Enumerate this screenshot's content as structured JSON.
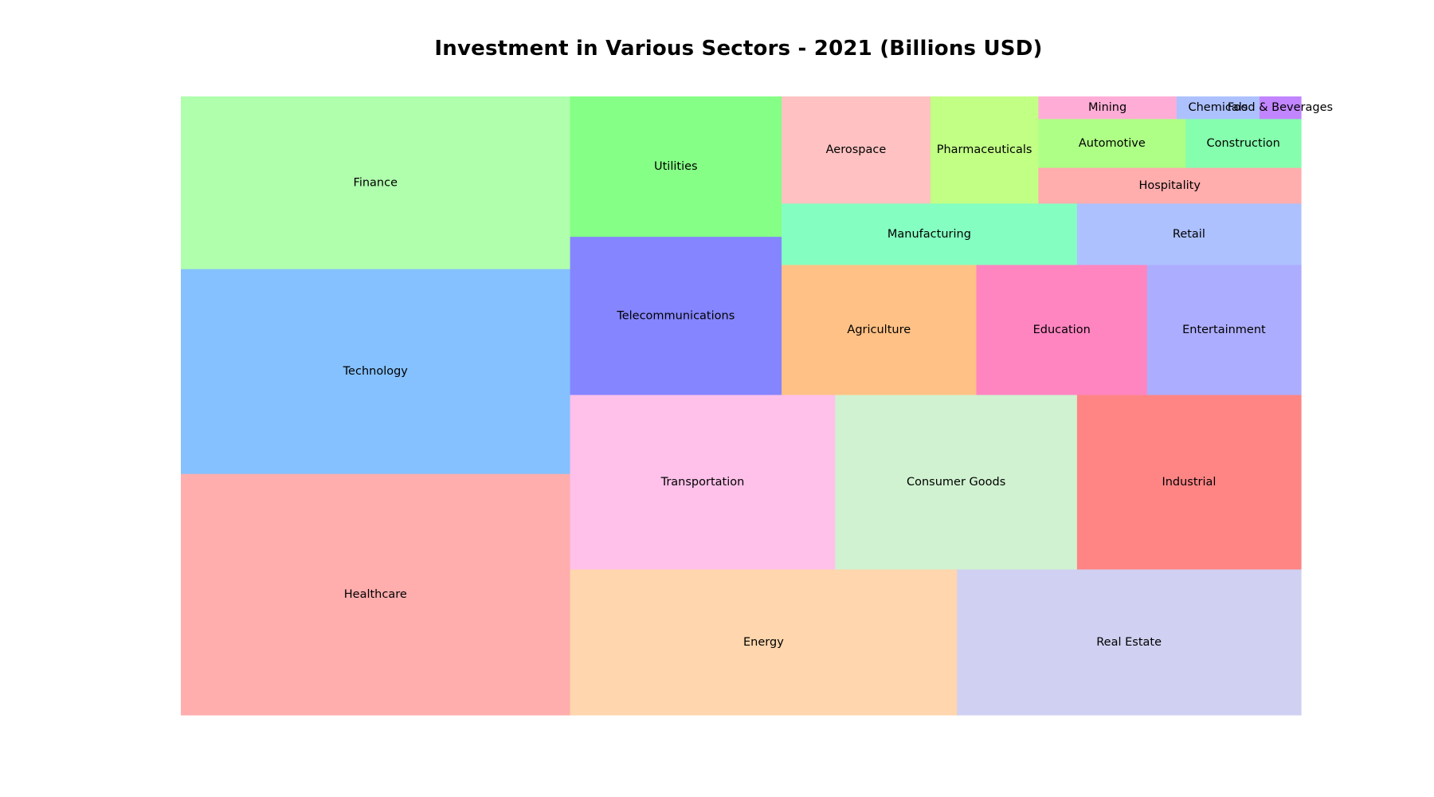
{
  "chart_data": {
    "type": "treemap",
    "title": "Investment in Various Sectors - 2021 (Billions USD)",
    "unit": "Billions USD",
    "items": [
      {
        "label": "Healthcare",
        "value": 300,
        "color": "#ffadad"
      },
      {
        "label": "Technology",
        "value": 255,
        "color": "#85c1ff"
      },
      {
        "label": "Finance",
        "value": 215,
        "color": "#b0ffad"
      },
      {
        "label": "Real Estate",
        "value": 160,
        "color": "#d0d0f2"
      },
      {
        "label": "Energy",
        "value": 180,
        "color": "#ffd6ad"
      },
      {
        "label": "Industrial",
        "value": 125,
        "color": "#ff8585"
      },
      {
        "label": "Consumer Goods",
        "value": 135,
        "color": "#d0f2d0"
      },
      {
        "label": "Transportation",
        "value": 148,
        "color": "#ffc1ea"
      },
      {
        "label": "Telecommunications",
        "value": 107,
        "color": "#8585ff"
      },
      {
        "label": "Utilities",
        "value": 95,
        "color": "#85ff85"
      },
      {
        "label": "Entertainment",
        "value": 64,
        "color": "#adadff"
      },
      {
        "label": "Education",
        "value": 71,
        "color": "#ff85c1"
      },
      {
        "label": "Agriculture",
        "value": 81,
        "color": "#ffc185"
      },
      {
        "label": "Manufacturing",
        "value": 58,
        "color": "#85ffc1"
      },
      {
        "label": "Aerospace",
        "value": 51,
        "color": "#ffc1c1"
      },
      {
        "label": "Retail",
        "value": 44,
        "color": "#adc1ff"
      },
      {
        "label": "Pharmaceuticals",
        "value": 37,
        "color": "#c1ff85"
      },
      {
        "label": "Hospitality",
        "value": 30,
        "color": "#ffadad"
      },
      {
        "label": "Construction",
        "value": 18,
        "color": "#85ffad"
      },
      {
        "label": "Automotive",
        "value": 23,
        "color": "#adff85"
      },
      {
        "label": "Mining",
        "value": 10,
        "color": "#ffadd6"
      },
      {
        "label": "Chemicals",
        "value": 6,
        "color": "#adc1ff"
      },
      {
        "label": "Food & Beverages",
        "value": 3,
        "color": "#c185ff"
      }
    ]
  }
}
